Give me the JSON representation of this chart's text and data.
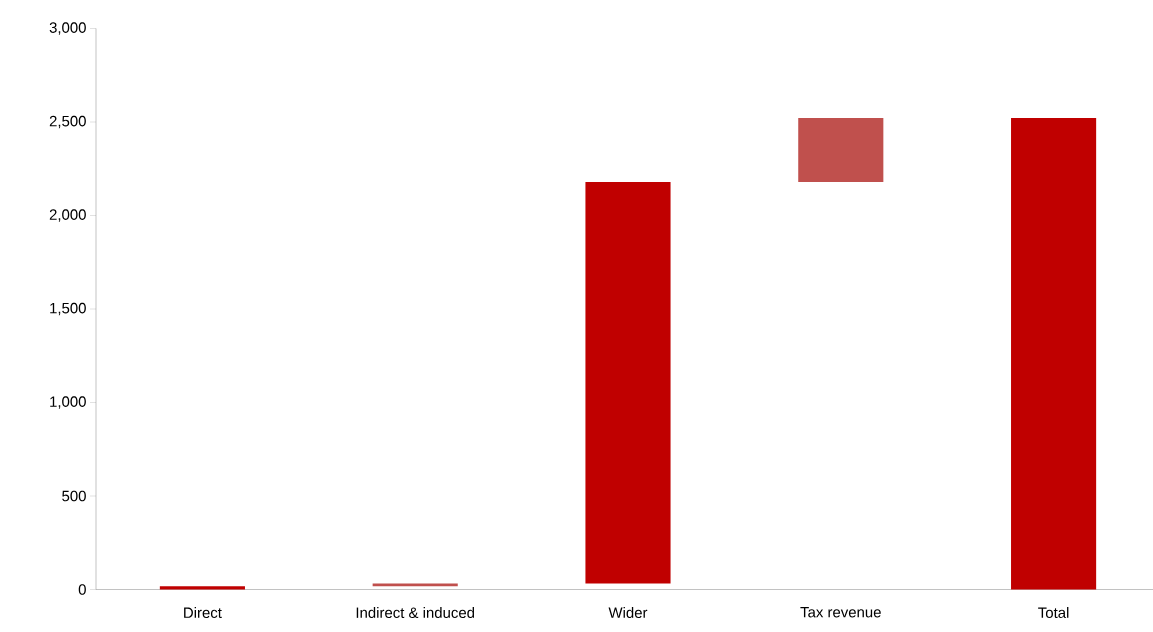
{
  "chart_data": {
    "type": "bar",
    "categories": [
      "Direct",
      "Indirect & induced",
      "Wider",
      "Tax revenue",
      "Total"
    ],
    "values": [
      18,
      14,
      2147,
      342,
      2521
    ],
    "base": [
      0,
      18,
      32,
      2179,
      0
    ],
    "colors": [
      "#c00000",
      "#c0504d",
      "#c00000",
      "#c0504d",
      "#c00000"
    ],
    "ylim": [
      0,
      3000
    ],
    "yticks": [
      0,
      500,
      {
        "value": 1000,
        "label": "1,000"
      },
      {
        "value": 1500,
        "label": "1,500"
      },
      {
        "value": 2000,
        "label": "2,000"
      },
      {
        "value": 2500,
        "label": "2,500"
      },
      {
        "value": 3000,
        "label": "3,000"
      }
    ]
  }
}
